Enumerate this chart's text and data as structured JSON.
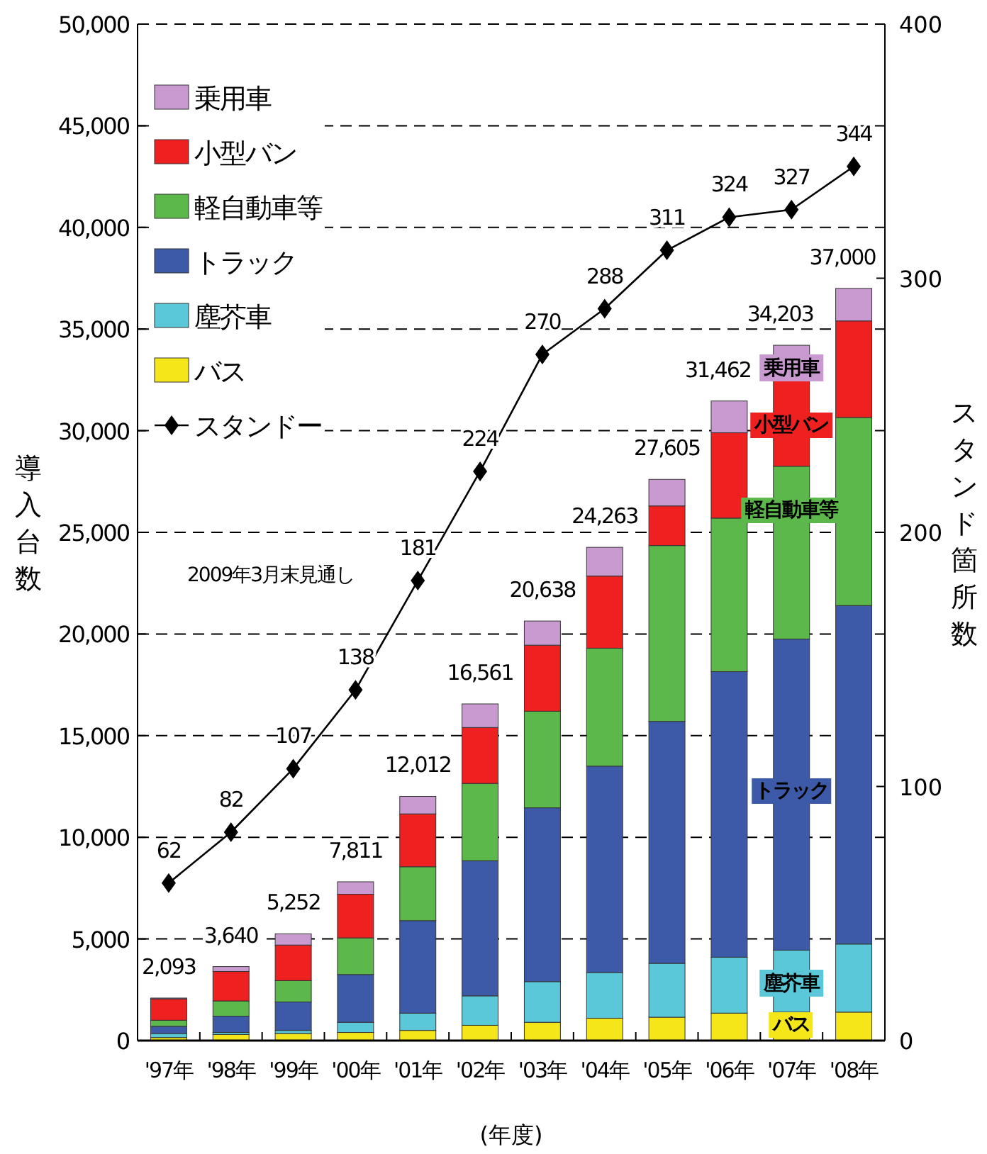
{
  "chart_data": {
    "type": "bar",
    "stacked": true,
    "categories": [
      "'97年",
      "'98年",
      "'99年",
      "'00年",
      "'01年",
      "'02年",
      "'03年",
      "'04年",
      "'05年",
      "'06年",
      "'07年",
      "'08年"
    ],
    "series": [
      {
        "name": "バス",
        "color": "#f5e61a",
        "values": [
          150,
          300,
          350,
          400,
          500,
          750,
          900,
          1100,
          1150,
          1350,
          1400,
          1400
        ]
      },
      {
        "name": "塵芥車",
        "color": "#5ac8d8",
        "values": [
          200,
          100,
          150,
          500,
          850,
          1450,
          2000,
          2250,
          2650,
          2750,
          3050,
          3350
        ]
      },
      {
        "name": "トラック",
        "color": "#3d5aa8",
        "values": [
          350,
          800,
          1400,
          2350,
          4550,
          6650,
          8550,
          10150,
          11900,
          14050,
          15300,
          16650
        ]
      },
      {
        "name": "軽自動車等",
        "color": "#5cb84a",
        "values": [
          300,
          750,
          1050,
          1800,
          2650,
          3800,
          4750,
          5800,
          8650,
          7550,
          8500,
          9250
        ]
      },
      {
        "name": "小型バン",
        "color": "#ee2020",
        "values": [
          1050,
          1450,
          1750,
          2150,
          2600,
          2750,
          3250,
          3550,
          1950,
          4200,
          4300,
          4750
        ]
      },
      {
        "name": "乗用車",
        "color": "#c89ad0",
        "values": [
          43,
          240,
          552,
          611,
          862,
          1161,
          1188,
          1413,
          1305,
          1562,
          1653,
          1600
        ]
      },
      {
        "name": "スタンドー",
        "type": "line",
        "axis": "y2",
        "color": "#000000",
        "marker": "diamond",
        "line_style": "solid",
        "values": [
          62,
          82,
          107,
          138,
          181,
          224,
          270,
          288,
          311,
          324,
          327,
          344
        ],
        "value_labels": [
          "62",
          "82",
          "107",
          "138",
          "181",
          "224",
          "270",
          "288",
          "311",
          "324",
          "327",
          "344"
        ]
      }
    ],
    "totals": [
      "2,093",
      "3,640",
      "5,252",
      "7,811",
      "12,012",
      "16,561",
      "20,638",
      "24,263",
      "27,605",
      "31,462",
      "34,203",
      "37,000"
    ],
    "ylabel": "導入台数",
    "y2label": "スタンド箇所数",
    "xlabel": "(年度)",
    "ylim": [
      0,
      50000
    ],
    "yticks": [
      {
        "value": 0,
        "label": "0"
      },
      {
        "value": 5000,
        "label": "5,000"
      },
      {
        "value": 10000,
        "label": "10,000"
      },
      {
        "value": 15000,
        "label": "15,000"
      },
      {
        "value": 20000,
        "label": "20,000"
      },
      {
        "value": 25000,
        "label": "25,000"
      },
      {
        "value": 30000,
        "label": "30,000"
      },
      {
        "value": 35000,
        "label": "35,000"
      },
      {
        "value": 40000,
        "label": "40,000"
      },
      {
        "value": 45000,
        "label": "45,000"
      },
      {
        "value": 50000,
        "label": "50,000"
      }
    ],
    "y2lim": [
      0,
      400
    ],
    "y2ticks": [
      0,
      100,
      200,
      300,
      400
    ],
    "grid": "y",
    "legend": "top left",
    "annotations": [
      "2009年3月末見通し",
      "乗用車",
      "小型バン",
      "軽自動車等",
      "トラック",
      "塵芥車",
      "バス"
    ]
  }
}
